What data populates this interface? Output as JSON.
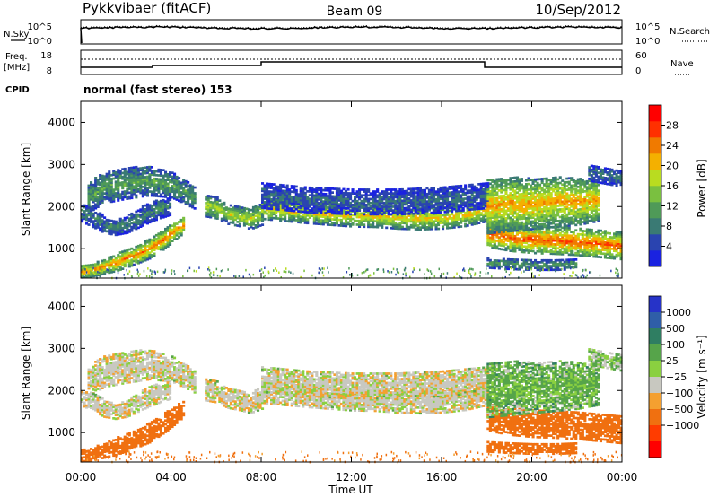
{
  "header": {
    "station": "Pykkvibaer (fitACF)",
    "beam": "Beam 09",
    "date": "10/Sep/2012"
  },
  "meta_panels": {
    "nsky_label": "N.Sky",
    "nsearch_label": "N.Search",
    "freq_label_1": "Freq.",
    "freq_label_2": "[MHz]",
    "nave_label": "Nave",
    "cpid_label": "CPID",
    "cpid_text": "normal (fast stereo) 153",
    "noise_left_ticks": [
      "10^5",
      "10^0"
    ],
    "noise_right_ticks": [
      "10^5",
      "10^0"
    ],
    "freq_left_ticks": [
      "18",
      "8"
    ],
    "freq_right_ticks": [
      "60",
      "0"
    ]
  },
  "x_axis": {
    "label": "Time UT",
    "ticks": [
      "00:00",
      "04:00",
      "08:00",
      "12:00",
      "16:00",
      "20:00",
      "00:00"
    ]
  },
  "colors": {
    "power_scale": [
      "#1a22e0",
      "#2a44b0",
      "#3a7a74",
      "#4f9a58",
      "#7ac040",
      "#b9dc20",
      "#f4b000",
      "#f07a00",
      "#ff3000",
      "#ff0000"
    ],
    "velocity_scale": [
      "#2633c8",
      "#2f5ea8",
      "#2f7e62",
      "#56a44a",
      "#8ad040",
      "#c8c8c0",
      "#f4a030",
      "#f07010",
      "#ff3c00",
      "#ff0000"
    ]
  },
  "chart_data": [
    {
      "type": "heatmap",
      "title": "Pykkvibaer (fitACF)",
      "xlabel": "Time UT",
      "ylabel": "Slant Range [km]",
      "x_range_hours": [
        0,
        24
      ],
      "ylim": [
        300,
        4500
      ],
      "y_ticks": [
        "1000",
        "2000",
        "3000",
        "4000"
      ],
      "colorbar": {
        "label": "Power [dB]",
        "range": [
          0,
          32
        ],
        "ticks": [
          "4",
          "8",
          "12",
          "16",
          "20",
          "24",
          "28"
        ]
      },
      "echo_bands": [
        {
          "t": [
            0,
            0.5,
            1,
            1.5,
            2,
            2.5,
            3,
            3.5,
            4,
            4.5
          ],
          "range_km": [
            450,
            480,
            560,
            650,
            760,
            860,
            980,
            1150,
            1350,
            1550
          ],
          "width_km": [
            150,
            150,
            170,
            200,
            220,
            220,
            230,
            230,
            230,
            200
          ],
          "power_db": 24
        },
        {
          "t": [
            0.3,
            1,
            2,
            3,
            4,
            5
          ],
          "range_km": [
            2200,
            2450,
            2550,
            2600,
            2500,
            2200
          ],
          "width_km": [
            350,
            380,
            380,
            350,
            300,
            260
          ],
          "power_db": 12
        },
        {
          "t": [
            0,
            0.5,
            1,
            1.5,
            2,
            2.5,
            3,
            3.5,
            4
          ],
          "range_km": [
            1850,
            1720,
            1560,
            1480,
            1560,
            1700,
            1850,
            1950,
            2000
          ],
          "width_km": [
            220,
            220,
            200,
            170,
            200,
            220,
            240,
            240,
            200
          ],
          "power_db": 9
        },
        {
          "t": [
            5.5,
            6,
            6.5,
            7,
            7.5,
            8
          ],
          "range_km": [
            2000,
            1950,
            1800,
            1750,
            1700,
            1800
          ],
          "width_km": [
            250,
            250,
            230,
            230,
            250,
            250
          ],
          "power_db": 18
        },
        {
          "t": [
            8,
            9,
            10,
            11,
            12,
            13,
            14,
            15,
            16,
            17,
            18
          ],
          "range_km": [
            1950,
            1900,
            1850,
            1800,
            1760,
            1760,
            1720,
            1700,
            1720,
            1780,
            1900
          ],
          "width_km": [
            260,
            260,
            260,
            250,
            250,
            260,
            260,
            260,
            260,
            260,
            260
          ],
          "power_db": 20
        },
        {
          "t": [
            8,
            10,
            12,
            14,
            16,
            18
          ],
          "range_km": [
            2250,
            2150,
            2100,
            2100,
            2150,
            2250
          ],
          "width_km": [
            300,
            300,
            300,
            300,
            300,
            300
          ],
          "power_db": 7
        },
        {
          "t": [
            18,
            19,
            20,
            21,
            22,
            23,
            24
          ],
          "range_km": [
            1350,
            1250,
            1200,
            1180,
            1150,
            1100,
            1050
          ],
          "width_km": [
            320,
            320,
            320,
            320,
            320,
            320,
            320
          ],
          "power_db": 26
        },
        {
          "t": [
            18,
            19,
            20,
            21,
            22,
            23
          ],
          "range_km": [
            2000,
            2050,
            2050,
            2100,
            2100,
            2150
          ],
          "width_km": [
            650,
            650,
            600,
            600,
            550,
            500
          ],
          "power_db": 22
        },
        {
          "t": [
            18,
            19,
            20,
            21,
            22
          ],
          "range_km": [
            650,
            620,
            600,
            600,
            620
          ],
          "width_km": [
            120,
            120,
            120,
            120,
            120
          ],
          "power_db": 11
        },
        {
          "t": [
            22.5,
            23,
            23.5,
            24
          ],
          "range_km": [
            2800,
            2750,
            2700,
            2650
          ],
          "width_km": [
            200,
            200,
            200,
            200
          ],
          "power_db": 8
        }
      ]
    },
    {
      "type": "heatmap",
      "xlabel": "Time UT",
      "ylabel": "Slant Range [km]",
      "x_range_hours": [
        0,
        24
      ],
      "ylim": [
        300,
        4500
      ],
      "y_ticks": [
        "1000",
        "2000",
        "3000",
        "4000"
      ],
      "colorbar": {
        "label": "Velocity [m s⁻¹]",
        "ticks": [
          "1000",
          "500",
          "100",
          "25",
          "−25",
          "−100",
          "−500",
          "−1000"
        ]
      },
      "echo_bands": [
        {
          "t": [
            0,
            0.5,
            1,
            1.5,
            2,
            2.5,
            3,
            3.5,
            4,
            4.5
          ],
          "range_km": [
            450,
            480,
            560,
            650,
            760,
            860,
            980,
            1150,
            1350,
            1550
          ],
          "width_km": [
            150,
            150,
            170,
            200,
            220,
            220,
            230,
            230,
            230,
            200
          ],
          "velocity": -300
        },
        {
          "t": [
            0.3,
            1,
            2,
            3,
            4,
            5
          ],
          "range_km": [
            2200,
            2450,
            2550,
            2600,
            2500,
            2200
          ],
          "width_km": [
            350,
            380,
            380,
            350,
            300,
            260
          ],
          "velocity": 0
        },
        {
          "t": [
            0,
            0.5,
            1,
            1.5,
            2,
            2.5,
            3,
            3.5,
            4
          ],
          "range_km": [
            1850,
            1720,
            1560,
            1480,
            1560,
            1700,
            1850,
            1950,
            2000
          ],
          "width_km": [
            220,
            220,
            200,
            170,
            200,
            220,
            240,
            240,
            200
          ],
          "velocity": 0
        },
        {
          "t": [
            5.5,
            6,
            6.5,
            7,
            7.5,
            8
          ],
          "range_km": [
            2000,
            1950,
            1800,
            1750,
            1700,
            1800
          ],
          "width_km": [
            250,
            250,
            230,
            230,
            250,
            250
          ],
          "velocity": 0
        },
        {
          "t": [
            8,
            9,
            10,
            11,
            12,
            13,
            14,
            15,
            16,
            17,
            18
          ],
          "range_km": [
            1950,
            1900,
            1850,
            1800,
            1760,
            1760,
            1720,
            1700,
            1720,
            1780,
            1900
          ],
          "width_km": [
            260,
            260,
            260,
            250,
            250,
            260,
            260,
            260,
            260,
            260,
            260
          ],
          "velocity": 0
        },
        {
          "t": [
            8,
            10,
            12,
            14,
            16,
            18
          ],
          "range_km": [
            2250,
            2150,
            2100,
            2100,
            2150,
            2250
          ],
          "width_km": [
            300,
            300,
            300,
            300,
            300,
            300
          ],
          "velocity": 0
        },
        {
          "t": [
            18,
            19,
            20,
            21,
            22,
            23,
            24
          ],
          "range_km": [
            1350,
            1250,
            1200,
            1180,
            1150,
            1100,
            1050
          ],
          "width_km": [
            320,
            320,
            320,
            320,
            320,
            320,
            320
          ],
          "velocity": -200
        },
        {
          "t": [
            18,
            19,
            20,
            21,
            22,
            23
          ],
          "range_km": [
            2000,
            2050,
            2050,
            2100,
            2100,
            2150
          ],
          "width_km": [
            650,
            650,
            600,
            600,
            550,
            500
          ],
          "velocity": 60
        },
        {
          "t": [
            18,
            19,
            20,
            21,
            22
          ],
          "range_km": [
            650,
            620,
            600,
            600,
            620
          ],
          "width_km": [
            120,
            120,
            120,
            120,
            120
          ],
          "velocity": -200
        },
        {
          "t": [
            22.5,
            23,
            23.5,
            24
          ],
          "range_km": [
            2800,
            2750,
            2700,
            2650
          ],
          "width_km": [
            200,
            200,
            200,
            200
          ],
          "velocity": 40
        }
      ]
    }
  ]
}
